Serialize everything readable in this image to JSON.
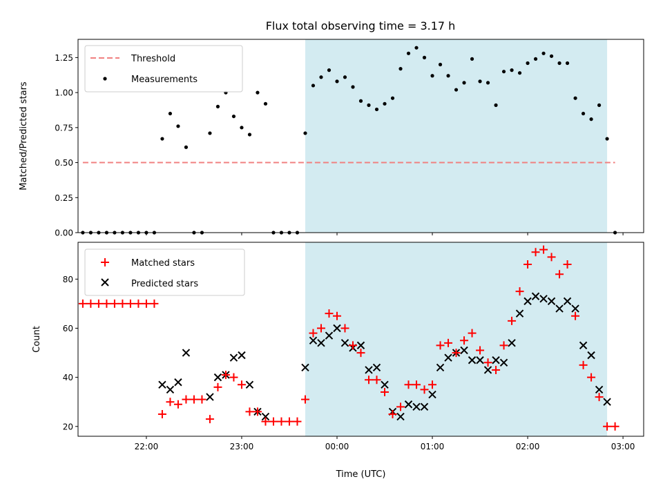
{
  "chart_data": {
    "title": "Flux total observing time = 3.17 h",
    "xlabel": "Time (UTC)",
    "x_ticks": [
      "22:00",
      "23:00",
      "00:00",
      "01:00",
      "02:00",
      "03:00"
    ],
    "shaded_span": [
      "23:40",
      "02:50"
    ],
    "colors": {
      "shade": "#d3ebf1",
      "threshold": "#f08080",
      "matched": "#ff0000",
      "predicted": "#000000",
      "measure": "#000000"
    },
    "panels": [
      {
        "type": "scatter",
        "ylabel": "Matched/Predicted stars",
        "ylim": [
          0,
          1.38
        ],
        "y_ticks": [
          "0.00",
          "0.25",
          "0.50",
          "0.75",
          "1.00",
          "1.25"
        ],
        "legend_position": "top-left",
        "threshold": {
          "name": "Threshold",
          "value": 0.5,
          "x_start": "21:20",
          "x_end": "02:55"
        },
        "measurements": {
          "name": "Measurements",
          "points": [
            [
              "21:20",
              0
            ],
            [
              "21:25",
              0
            ],
            [
              "21:30",
              0
            ],
            [
              "21:35",
              0
            ],
            [
              "21:40",
              0
            ],
            [
              "21:45",
              0
            ],
            [
              "21:50",
              0
            ],
            [
              "21:55",
              0
            ],
            [
              "22:00",
              0
            ],
            [
              "22:05",
              0
            ],
            [
              "22:10",
              0.67
            ],
            [
              "22:15",
              0.85
            ],
            [
              "22:20",
              0.76
            ],
            [
              "22:25",
              0.61
            ],
            [
              "22:30",
              0
            ],
            [
              "22:35",
              0
            ],
            [
              "22:40",
              0.71
            ],
            [
              "22:45",
              0.9
            ],
            [
              "22:50",
              1.0
            ],
            [
              "22:55",
              0.83
            ],
            [
              "23:00",
              0.75
            ],
            [
              "23:05",
              0.7
            ],
            [
              "23:10",
              1.0
            ],
            [
              "23:15",
              0.92
            ],
            [
              "23:20",
              0
            ],
            [
              "23:25",
              0
            ],
            [
              "23:30",
              0
            ],
            [
              "23:35",
              0
            ],
            [
              "23:40",
              0.71
            ],
            [
              "23:45",
              1.05
            ],
            [
              "23:50",
              1.11
            ],
            [
              "23:55",
              1.16
            ],
            [
              "00:00",
              1.08
            ],
            [
              "00:05",
              1.11
            ],
            [
              "00:10",
              1.04
            ],
            [
              "00:15",
              0.94
            ],
            [
              "00:20",
              0.91
            ],
            [
              "00:25",
              0.88
            ],
            [
              "00:30",
              0.92
            ],
            [
              "00:35",
              0.96
            ],
            [
              "00:40",
              1.17
            ],
            [
              "00:45",
              1.28
            ],
            [
              "00:50",
              1.32
            ],
            [
              "00:55",
              1.25
            ],
            [
              "01:00",
              1.12
            ],
            [
              "01:05",
              1.2
            ],
            [
              "01:10",
              1.12
            ],
            [
              "01:15",
              1.02
            ],
            [
              "01:20",
              1.07
            ],
            [
              "01:25",
              1.24
            ],
            [
              "01:30",
              1.08
            ],
            [
              "01:35",
              1.07
            ],
            [
              "01:40",
              0.91
            ],
            [
              "01:45",
              1.15
            ],
            [
              "01:50",
              1.16
            ],
            [
              "01:55",
              1.14
            ],
            [
              "02:00",
              1.21
            ],
            [
              "02:05",
              1.24
            ],
            [
              "02:10",
              1.28
            ],
            [
              "02:15",
              1.26
            ],
            [
              "02:20",
              1.21
            ],
            [
              "02:25",
              1.21
            ],
            [
              "02:30",
              0.96
            ],
            [
              "02:35",
              0.85
            ],
            [
              "02:40",
              0.81
            ],
            [
              "02:45",
              0.91
            ],
            [
              "02:50",
              0.67
            ],
            [
              "02:55",
              0
            ]
          ]
        }
      },
      {
        "type": "scatter",
        "ylabel": "Count",
        "ylim": [
          16,
          95
        ],
        "y_ticks": [
          "20",
          "40",
          "60",
          "80"
        ],
        "legend_position": "top-left",
        "series": [
          {
            "name": "Matched stars",
            "marker": "plus",
            "points": [
              [
                "21:20",
                70
              ],
              [
                "21:25",
                70
              ],
              [
                "21:30",
                70
              ],
              [
                "21:35",
                70
              ],
              [
                "21:40",
                70
              ],
              [
                "21:45",
                70
              ],
              [
                "21:50",
                70
              ],
              [
                "21:55",
                70
              ],
              [
                "22:00",
                70
              ],
              [
                "22:05",
                70
              ],
              [
                "22:10",
                25
              ],
              [
                "22:15",
                30
              ],
              [
                "22:20",
                29
              ],
              [
                "22:25",
                31
              ],
              [
                "22:30",
                31
              ],
              [
                "22:35",
                31
              ],
              [
                "22:40",
                23
              ],
              [
                "22:45",
                36
              ],
              [
                "22:50",
                41
              ],
              [
                "22:55",
                40
              ],
              [
                "23:00",
                37
              ],
              [
                "23:05",
                26
              ],
              [
                "23:10",
                26
              ],
              [
                "23:15",
                22
              ],
              [
                "23:20",
                22
              ],
              [
                "23:25",
                22
              ],
              [
                "23:30",
                22
              ],
              [
                "23:35",
                22
              ],
              [
                "23:40",
                31
              ],
              [
                "23:45",
                58
              ],
              [
                "23:50",
                60
              ],
              [
                "23:55",
                66
              ],
              [
                "00:00",
                65
              ],
              [
                "00:05",
                60
              ],
              [
                "00:10",
                53
              ],
              [
                "00:15",
                50
              ],
              [
                "00:20",
                39
              ],
              [
                "00:25",
                39
              ],
              [
                "00:30",
                34
              ],
              [
                "00:35",
                25
              ],
              [
                "00:40",
                28
              ],
              [
                "00:45",
                37
              ],
              [
                "00:50",
                37
              ],
              [
                "00:55",
                35
              ],
              [
                "01:00",
                37
              ],
              [
                "01:05",
                53
              ],
              [
                "01:10",
                54
              ],
              [
                "01:15",
                50
              ],
              [
                "01:20",
                55
              ],
              [
                "01:25",
                58
              ],
              [
                "01:30",
                51
              ],
              [
                "01:35",
                46
              ],
              [
                "01:40",
                43
              ],
              [
                "01:45",
                53
              ],
              [
                "01:50",
                63
              ],
              [
                "01:55",
                75
              ],
              [
                "02:00",
                86
              ],
              [
                "02:05",
                91
              ],
              [
                "02:10",
                92
              ],
              [
                "02:15",
                89
              ],
              [
                "02:20",
                82
              ],
              [
                "02:25",
                86
              ],
              [
                "02:30",
                65
              ],
              [
                "02:35",
                45
              ],
              [
                "02:40",
                40
              ],
              [
                "02:45",
                32
              ],
              [
                "02:50",
                20
              ],
              [
                "02:55",
                20
              ]
            ]
          },
          {
            "name": "Predicted stars",
            "marker": "x",
            "points": [
              [
                "22:10",
                37
              ],
              [
                "22:15",
                35
              ],
              [
                "22:20",
                38
              ],
              [
                "22:25",
                50
              ],
              [
                "22:40",
                32
              ],
              [
                "22:45",
                40
              ],
              [
                "22:50",
                41
              ],
              [
                "22:55",
                48
              ],
              [
                "23:00",
                49
              ],
              [
                "23:05",
                37
              ],
              [
                "23:10",
                26
              ],
              [
                "23:15",
                24
              ],
              [
                "23:40",
                44
              ],
              [
                "23:45",
                55
              ],
              [
                "23:50",
                54
              ],
              [
                "23:55",
                57
              ],
              [
                "00:00",
                60
              ],
              [
                "00:05",
                54
              ],
              [
                "00:10",
                52
              ],
              [
                "00:15",
                53
              ],
              [
                "00:20",
                43
              ],
              [
                "00:25",
                44
              ],
              [
                "00:30",
                37
              ],
              [
                "00:35",
                26
              ],
              [
                "00:40",
                24
              ],
              [
                "00:45",
                29
              ],
              [
                "00:50",
                28
              ],
              [
                "00:55",
                28
              ],
              [
                "01:00",
                33
              ],
              [
                "01:05",
                44
              ],
              [
                "01:10",
                48
              ],
              [
                "01:15",
                50
              ],
              [
                "01:20",
                51
              ],
              [
                "01:25",
                47
              ],
              [
                "01:30",
                47
              ],
              [
                "01:35",
                43
              ],
              [
                "01:40",
                47
              ],
              [
                "01:45",
                46
              ],
              [
                "01:50",
                54
              ],
              [
                "01:55",
                66
              ],
              [
                "02:00",
                71
              ],
              [
                "02:05",
                73
              ],
              [
                "02:10",
                72
              ],
              [
                "02:15",
                71
              ],
              [
                "02:20",
                68
              ],
              [
                "02:25",
                71
              ],
              [
                "02:30",
                68
              ],
              [
                "02:35",
                53
              ],
              [
                "02:40",
                49
              ],
              [
                "02:45",
                35
              ],
              [
                "02:50",
                30
              ]
            ]
          }
        ]
      }
    ]
  }
}
